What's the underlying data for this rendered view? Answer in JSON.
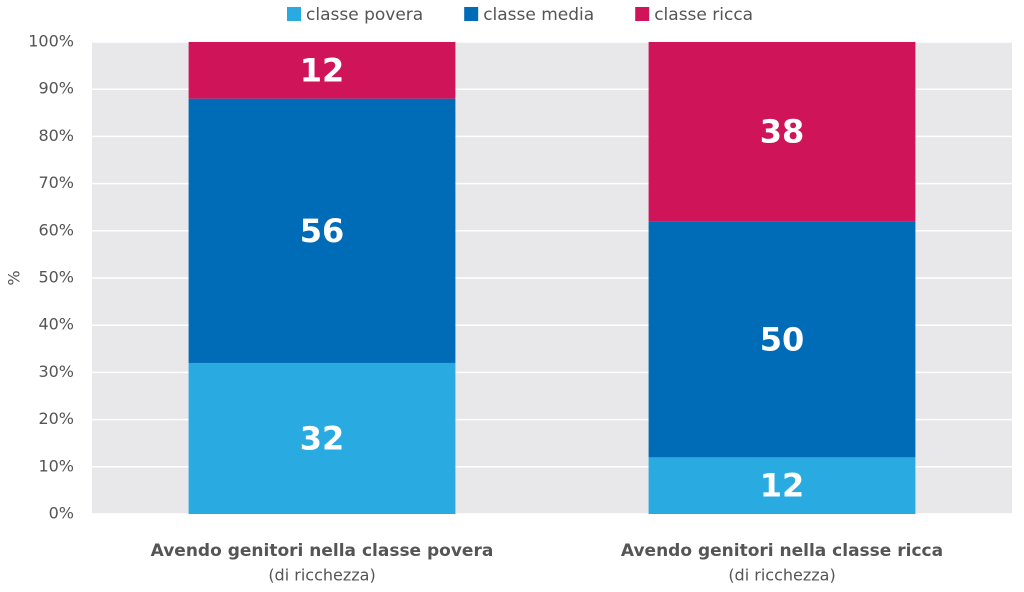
{
  "chart_data": {
    "type": "stacked_bar",
    "y_label": "%",
    "categories": [
      "Avendo genitori nella classe povera",
      "Avendo genitori nella classe ricca"
    ],
    "category_notes": [
      "(di ricchezza)",
      "(di ricchezza)"
    ],
    "series": [
      {
        "name": "classe povera",
        "color": "#29abe2",
        "values": [
          32,
          12
        ]
      },
      {
        "name": "classe media",
        "color": "#006cb7",
        "values": [
          56,
          50
        ]
      },
      {
        "name": "classe ricca",
        "color": "#d0145a",
        "values": [
          12,
          38
        ]
      }
    ],
    "ylim": [
      0,
      100
    ],
    "yticks": [
      {
        "value": 0,
        "label": "0%"
      },
      {
        "value": 10,
        "label": "10%"
      },
      {
        "value": 20,
        "label": "20%"
      },
      {
        "value": 30,
        "label": "30%"
      },
      {
        "value": 40,
        "label": "40%"
      },
      {
        "value": 50,
        "label": "50%"
      },
      {
        "value": 60,
        "label": "60%"
      },
      {
        "value": 70,
        "label": "70%"
      },
      {
        "value": 80,
        "label": "80%"
      },
      {
        "value": 90,
        "label": "90%"
      },
      {
        "value": 100,
        "label": "100%"
      }
    ],
    "grid": true,
    "legend": "top"
  }
}
